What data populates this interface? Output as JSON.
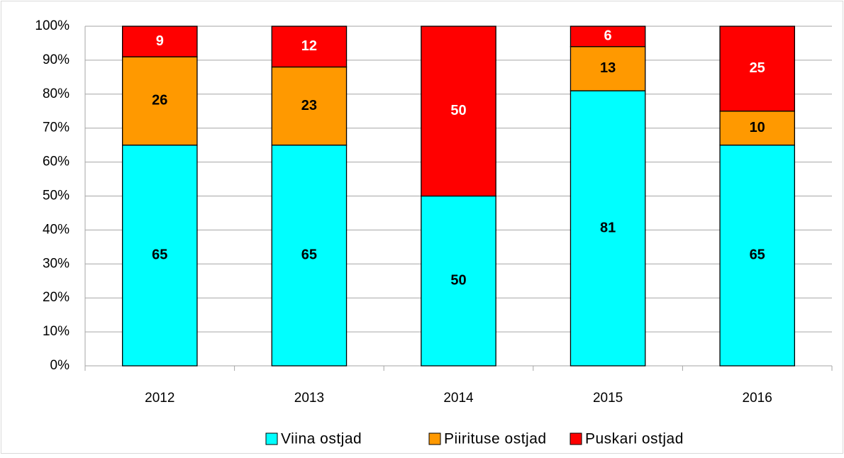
{
  "chart_data": {
    "type": "stacked_bar",
    "categories": [
      "2012",
      "2013",
      "2014",
      "2015",
      "2016"
    ],
    "series": [
      {
        "name": "Viina ostjad",
        "color": "#00ffff",
        "values": [
          65,
          65,
          50,
          81,
          65
        ],
        "label_color": "#000000"
      },
      {
        "name": "Piirituse ostjad",
        "color": "#ff9900",
        "values": [
          26,
          23,
          0,
          13,
          10
        ],
        "label_color": "#000000"
      },
      {
        "name": "Puskari ostjad",
        "color": "#ff0000",
        "values": [
          9,
          12,
          50,
          6,
          25
        ],
        "label_color": "#ffffff"
      }
    ],
    "ylim": [
      0,
      100
    ],
    "yticks": [
      {
        "value": 0,
        "label": "0%"
      },
      {
        "value": 10,
        "label": "10%"
      },
      {
        "value": 20,
        "label": "20%"
      },
      {
        "value": 30,
        "label": "30%"
      },
      {
        "value": 40,
        "label": "40%"
      },
      {
        "value": 50,
        "label": "50%"
      },
      {
        "value": 60,
        "label": "60%"
      },
      {
        "value": 70,
        "label": "70%"
      },
      {
        "value": 80,
        "label": "80%"
      },
      {
        "value": 90,
        "label": "90%"
      },
      {
        "value": 100,
        "label": "100%"
      }
    ],
    "grid": true,
    "legend": "bottom"
  }
}
